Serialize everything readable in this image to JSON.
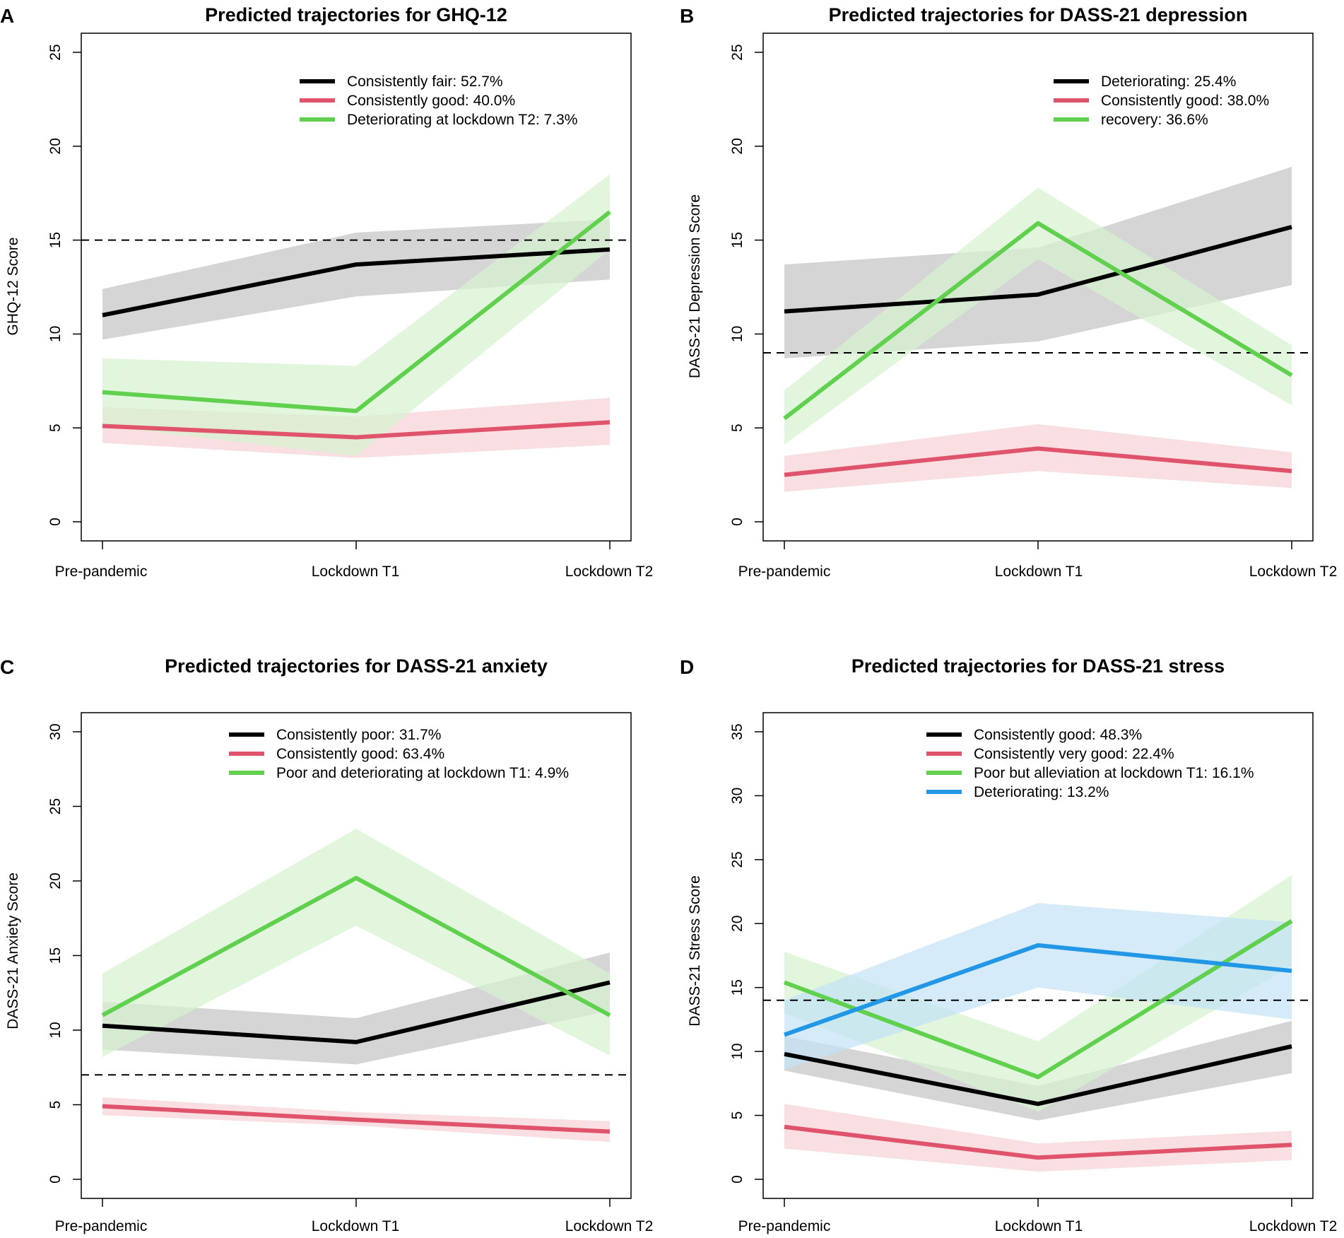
{
  "colors": {
    "black": "#000000",
    "red": "#DF536B",
    "green": "#61D04F",
    "blue": "#2297E6",
    "band_black": "#BEBEBE",
    "band_red": "#F6D0D6",
    "band_green": "#D6F2CE",
    "band_blue": "#C3E2F6"
  },
  "chart_data": [
    {
      "panel": "A",
      "type": "line",
      "title": "Predicted trajectories for GHQ-12",
      "xlabel": "",
      "ylabel": "GHQ-12 Score",
      "categories": [
        "Pre-pandemic",
        "Lockdown T1",
        "Lockdown T2"
      ],
      "ylim": [
        0,
        25
      ],
      "yticks": [
        0,
        5,
        10,
        15,
        20,
        25
      ],
      "threshold": 15,
      "legend_position": "top-right",
      "series": [
        {
          "name": "Consistently fair: 52.7%",
          "color": "black",
          "values": [
            11.0,
            13.7,
            14.5
          ],
          "lower": [
            9.7,
            12.0,
            12.9
          ],
          "upper": [
            12.4,
            15.4,
            16.1
          ]
        },
        {
          "name": "Consistently good: 40.0%",
          "color": "red",
          "values": [
            5.1,
            4.5,
            5.3
          ],
          "lower": [
            4.2,
            3.4,
            4.1
          ],
          "upper": [
            6.1,
            5.6,
            6.6
          ]
        },
        {
          "name": "Deteriorating at lockdown T2: 7.3%",
          "color": "green",
          "values": [
            6.9,
            5.9,
            16.5
          ],
          "lower": [
            5.1,
            3.5,
            14.5
          ],
          "upper": [
            8.7,
            8.3,
            18.5
          ]
        }
      ]
    },
    {
      "panel": "B",
      "type": "line",
      "title": "Predicted trajectories for DASS-21 depression",
      "xlabel": "",
      "ylabel": "DASS-21 Depression Score",
      "categories": [
        "Pre-pandemic",
        "Lockdown T1",
        "Lockdown T2"
      ],
      "ylim": [
        0,
        25
      ],
      "yticks": [
        0,
        5,
        10,
        15,
        20,
        25
      ],
      "threshold": 9,
      "legend_position": "top-right",
      "series": [
        {
          "name": "Deteriorating: 25.4%",
          "color": "black",
          "values": [
            11.2,
            12.1,
            15.7
          ],
          "lower": [
            8.7,
            9.6,
            12.6
          ],
          "upper": [
            13.7,
            14.6,
            18.9
          ]
        },
        {
          "name": "Consistently good: 38.0%",
          "color": "red",
          "values": [
            2.5,
            3.9,
            2.7
          ],
          "lower": [
            1.6,
            2.7,
            1.8
          ],
          "upper": [
            3.5,
            5.2,
            3.7
          ]
        },
        {
          "name": "recovery: 36.6%",
          "color": "green",
          "values": [
            5.5,
            15.9,
            7.8
          ],
          "lower": [
            4.1,
            14.0,
            6.2
          ],
          "upper": [
            7.0,
            17.8,
            9.4
          ]
        }
      ]
    },
    {
      "panel": "C",
      "type": "line",
      "title": "Predicted trajectories for DASS-21 anxiety",
      "xlabel": "",
      "ylabel": "DASS-21 Anxiety Score",
      "categories": [
        "Pre-pandemic",
        "Lockdown T1",
        "Lockdown T2"
      ],
      "ylim": [
        0,
        30
      ],
      "yticks": [
        0,
        5,
        10,
        15,
        20,
        25,
        30
      ],
      "threshold": 7,
      "legend_position": "top-right",
      "series": [
        {
          "name": "Consistently poor: 31.7%",
          "color": "black",
          "values": [
            10.3,
            9.2,
            13.2
          ],
          "lower": [
            8.7,
            7.7,
            11.3
          ],
          "upper": [
            11.9,
            10.8,
            15.2
          ]
        },
        {
          "name": "Consistently good: 63.4%",
          "color": "red",
          "values": [
            4.9,
            4.0,
            3.2
          ],
          "lower": [
            4.3,
            3.6,
            2.5
          ],
          "upper": [
            5.5,
            4.5,
            3.9
          ]
        },
        {
          "name": "Poor and deteriorating at lockdown T1: 4.9%",
          "color": "green",
          "values": [
            11.0,
            20.2,
            11.0
          ],
          "lower": [
            8.2,
            17.0,
            8.3
          ],
          "upper": [
            13.8,
            23.5,
            13.8
          ]
        }
      ]
    },
    {
      "panel": "D",
      "type": "line",
      "title": "Predicted trajectories for DASS-21 stress",
      "xlabel": "",
      "ylabel": "DASS-21 Stress Score",
      "categories": [
        "Pre-pandemic",
        "Lockdown T1",
        "Lockdown T2"
      ],
      "ylim": [
        0,
        35
      ],
      "yticks": [
        0,
        5,
        10,
        15,
        20,
        25,
        30,
        35
      ],
      "threshold": 14,
      "legend_position": "top-right",
      "series": [
        {
          "name": "Consistently good: 48.3%",
          "color": "black",
          "values": [
            9.8,
            5.9,
            10.4
          ],
          "lower": [
            8.5,
            4.6,
            8.3
          ],
          "upper": [
            11.2,
            7.3,
            12.4
          ]
        },
        {
          "name": "Consistently very good: 22.4%",
          "color": "red",
          "values": [
            4.1,
            1.7,
            2.7
          ],
          "lower": [
            2.4,
            0.6,
            1.5
          ],
          "upper": [
            5.9,
            2.8,
            3.8
          ]
        },
        {
          "name": "Poor but alleviation at lockdown T1: 16.1%",
          "color": "green",
          "values": [
            15.4,
            8.0,
            20.2
          ],
          "lower": [
            13.0,
            5.3,
            16.7
          ],
          "upper": [
            17.8,
            10.8,
            23.8
          ]
        },
        {
          "name": "Deteriorating: 13.2%",
          "color": "blue",
          "values": [
            11.3,
            18.3,
            16.3
          ],
          "lower": [
            8.6,
            15.0,
            12.5
          ],
          "upper": [
            14.0,
            21.6,
            20.1
          ]
        }
      ]
    }
  ]
}
